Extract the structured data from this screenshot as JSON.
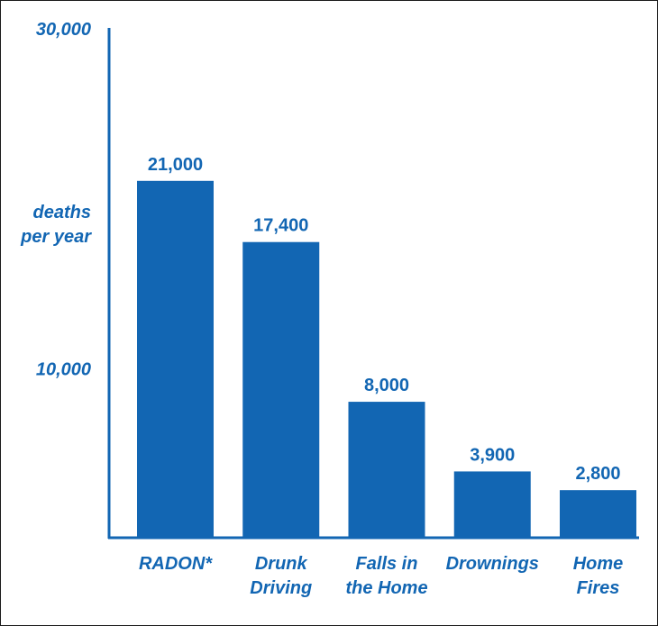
{
  "chart_data": {
    "type": "bar",
    "categories": [
      "RADON*",
      "Drunk Driving",
      "Falls in the Home",
      "Drownings",
      "Home Fires"
    ],
    "category_lines": [
      [
        "RADON*"
      ],
      [
        "Drunk",
        "Driving"
      ],
      [
        "Falls in",
        "the Home"
      ],
      [
        "Drownings"
      ],
      [
        "Home",
        "Fires"
      ]
    ],
    "values": [
      21000,
      17400,
      8000,
      3900,
      2800
    ],
    "value_labels": [
      "21,000",
      "17,400",
      "8,000",
      "3,900",
      "2,800"
    ],
    "ylabel_lines": [
      "deaths",
      "per year"
    ],
    "yticks": [
      {
        "value": 30000,
        "label": "30,000"
      },
      {
        "value": 10000,
        "label": "10,000"
      }
    ],
    "ylim": [
      0,
      30000
    ],
    "grid": false,
    "legend": "none",
    "bar_color": "#1266b3",
    "axis_color": "#1266b3",
    "text_color": "#1266b3"
  }
}
